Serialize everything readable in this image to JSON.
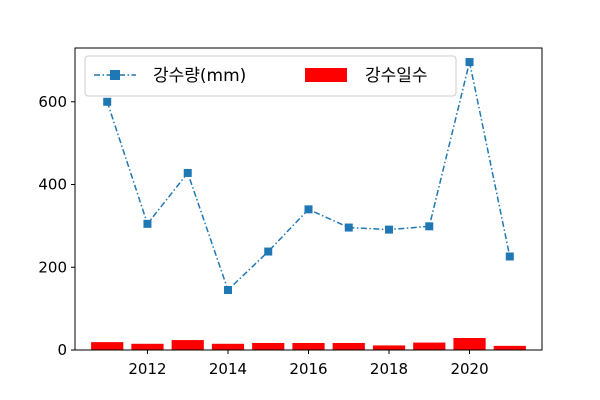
{
  "chart_data": {
    "type": "bar+line",
    "title": "",
    "xlabel": "",
    "ylabel": "",
    "x": [
      2011,
      2012,
      2013,
      2014,
      2015,
      2016,
      2017,
      2018,
      2019,
      2020,
      2021
    ],
    "xlim": [
      2010.2,
      2021.8
    ],
    "ylim": [
      0,
      730
    ],
    "x_ticks": [
      2012,
      2014,
      2016,
      2018,
      2020
    ],
    "y_ticks": [
      0,
      200,
      400,
      600
    ],
    "x_tick_labels": [
      "2012",
      "2014",
      "2016",
      "2018",
      "2020"
    ],
    "y_tick_labels": [
      "0",
      "200",
      "400",
      "600"
    ],
    "grid": false,
    "legend_position": "top",
    "series": [
      {
        "name": "강수량(mm)",
        "kind": "line",
        "style": "dash-dot",
        "marker": "square",
        "color": "#1f77b4",
        "values": [
          600,
          305,
          428,
          145,
          238,
          340,
          296,
          291,
          299,
          696,
          226
        ]
      },
      {
        "name": "강수일수",
        "kind": "bar",
        "color": "#ff0000",
        "values": [
          19,
          15,
          24,
          15,
          17,
          17,
          17,
          11,
          18,
          29,
          10
        ]
      }
    ]
  }
}
